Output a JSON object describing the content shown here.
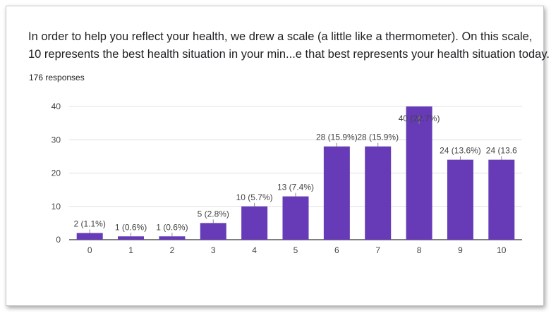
{
  "question": {
    "line1": "In order to help you reflect your health, we drew a scale (a little like a thermometer). On this scale,",
    "line2": "10 represents the best health situation in your min...e that best represents your health situation today."
  },
  "responses_label": "176 responses",
  "colors": {
    "bar": "#673ab7",
    "grid": "#e0e0e0",
    "axis": "#333333",
    "text": "#444444"
  },
  "chart_data": {
    "type": "bar",
    "title": "",
    "xlabel": "",
    "ylabel": "",
    "categories": [
      "0",
      "1",
      "2",
      "3",
      "4",
      "5",
      "6",
      "7",
      "8",
      "9",
      "10"
    ],
    "values": [
      2,
      1,
      1,
      5,
      10,
      13,
      28,
      28,
      40,
      24,
      24
    ],
    "data_labels": [
      "2 (1.1%)",
      "1 (0.6%)",
      "1 (0.6%)",
      "5 (2.8%)",
      "10 (5.7%)",
      "13 (7.4%)",
      "28 (15.9%)",
      "28 (15.9%)",
      "40 (22.7%)",
      "24 (13.6%)",
      "24 (13.6"
    ],
    "y_ticks": [
      0,
      10,
      20,
      30,
      40
    ],
    "ylim": [
      0,
      40
    ],
    "grid": true,
    "legend": "none"
  }
}
